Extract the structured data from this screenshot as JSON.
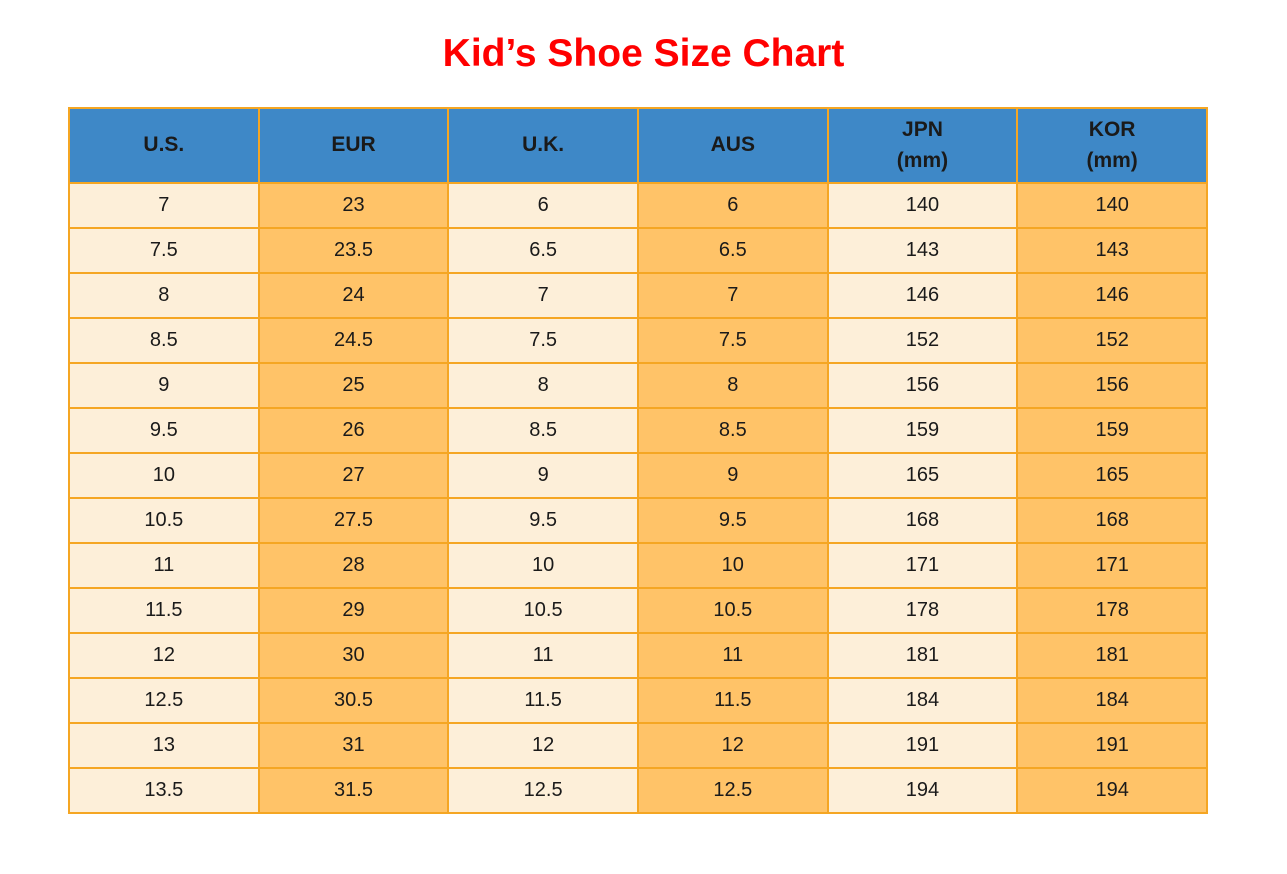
{
  "title": {
    "text": "Kid’s Shoe Size Chart"
  },
  "colors": {
    "title": "#FF0000",
    "header_bg": "#3E88C7",
    "border": "#F5A623",
    "cell_cream": "#FDEFD9",
    "cell_orange": "#FFC368",
    "text": "#1A1A1A"
  },
  "table": {
    "header": [
      {
        "key": "us",
        "label": "U.S.",
        "sub": ""
      },
      {
        "key": "eur",
        "label": "EUR",
        "sub": ""
      },
      {
        "key": "uk",
        "label": "U.K.",
        "sub": ""
      },
      {
        "key": "aus",
        "label": "AUS",
        "sub": ""
      },
      {
        "key": "jpn",
        "label": "JPN",
        "sub": "(mm)"
      },
      {
        "key": "kor",
        "label": "KOR",
        "sub": "(mm)"
      }
    ]
  },
  "chart_data": {
    "type": "table",
    "title": "Kid’s Shoe Size Chart",
    "columns": [
      "U.S.",
      "EUR",
      "U.K.",
      "AUS",
      "JPN (mm)",
      "KOR (mm)"
    ],
    "rows": [
      [
        "7",
        "23",
        "6",
        "6",
        "140",
        "140"
      ],
      [
        "7.5",
        "23.5",
        "6.5",
        "6.5",
        "143",
        "143"
      ],
      [
        "8",
        "24",
        "7",
        "7",
        "146",
        "146"
      ],
      [
        "8.5",
        "24.5",
        "7.5",
        "7.5",
        "152",
        "152"
      ],
      [
        "9",
        "25",
        "8",
        "8",
        "156",
        "156"
      ],
      [
        "9.5",
        "26",
        "8.5",
        "8.5",
        "159",
        "159"
      ],
      [
        "10",
        "27",
        "9",
        "9",
        "165",
        "165"
      ],
      [
        "10.5",
        "27.5",
        "9.5",
        "9.5",
        "168",
        "168"
      ],
      [
        "11",
        "28",
        "10",
        "10",
        "171",
        "171"
      ],
      [
        "11.5",
        "29",
        "10.5",
        "10.5",
        "178",
        "178"
      ],
      [
        "12",
        "30",
        "11",
        "11",
        "181",
        "181"
      ],
      [
        "12.5",
        "30.5",
        "11.5",
        "11.5",
        "184",
        "184"
      ],
      [
        "13",
        "31",
        "12",
        "12",
        "191",
        "191"
      ],
      [
        "13.5",
        "31.5",
        "12.5",
        "12.5",
        "194",
        "194"
      ]
    ]
  }
}
